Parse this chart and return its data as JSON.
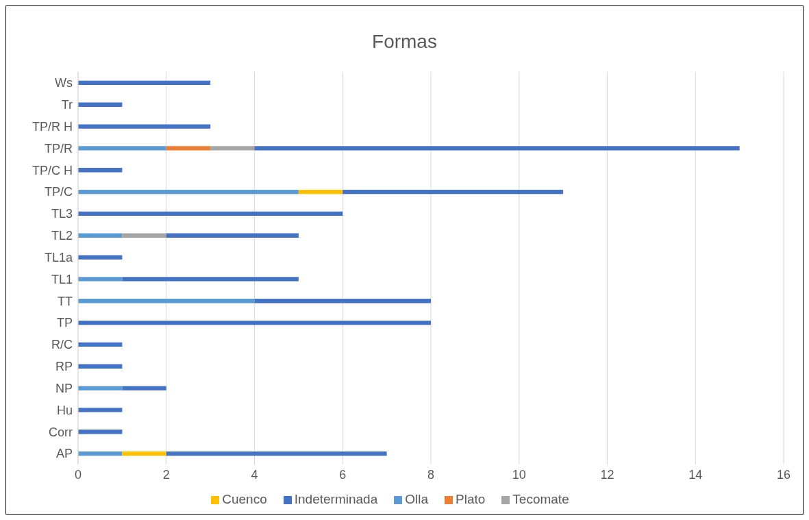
{
  "chart_data": {
    "type": "bar",
    "title": "Formas",
    "orientation": "horizontal",
    "stacked": true,
    "categories": [
      "Ws",
      "Tr",
      "TP/R H",
      "TP/R",
      "TP/C H",
      "TP/C",
      "TL3",
      "TL2",
      "TL1a",
      "TL1",
      "TT",
      "TP",
      "R/C",
      "RP",
      "NP",
      "Hu",
      "Corr",
      "AP"
    ],
    "series": [
      {
        "name": "Olla",
        "color": "#5b9bd5",
        "values": [
          0,
          0,
          0,
          2,
          0,
          5,
          0,
          1,
          0,
          1,
          4,
          0,
          0,
          0,
          1,
          0,
          0,
          1
        ]
      },
      {
        "name": "Plato",
        "color": "#ed7d31",
        "values": [
          0,
          0,
          0,
          1,
          0,
          0,
          0,
          0,
          0,
          0,
          0,
          0,
          0,
          0,
          0,
          0,
          0,
          0
        ]
      },
      {
        "name": "Tecomate",
        "color": "#a5a5a5",
        "values": [
          0,
          0,
          0,
          1,
          0,
          0,
          0,
          1,
          0,
          0,
          0,
          0,
          0,
          0,
          0,
          0,
          0,
          0
        ]
      },
      {
        "name": "Cuenco",
        "color": "#ffc000",
        "values": [
          0,
          0,
          0,
          0,
          0,
          1,
          0,
          0,
          0,
          0,
          0,
          0,
          0,
          0,
          0,
          0,
          0,
          1
        ]
      },
      {
        "name": "Indeterminada",
        "color": "#4472c4",
        "values": [
          3,
          1,
          3,
          11,
          1,
          5,
          6,
          3,
          1,
          4,
          4,
          8,
          1,
          1,
          1,
          1,
          1,
          5
        ]
      }
    ],
    "xlim": [
      0,
      16
    ],
    "xticks": [
      0,
      2,
      4,
      6,
      8,
      10,
      12,
      14,
      16
    ],
    "grid": "x",
    "legend": "bottom"
  }
}
